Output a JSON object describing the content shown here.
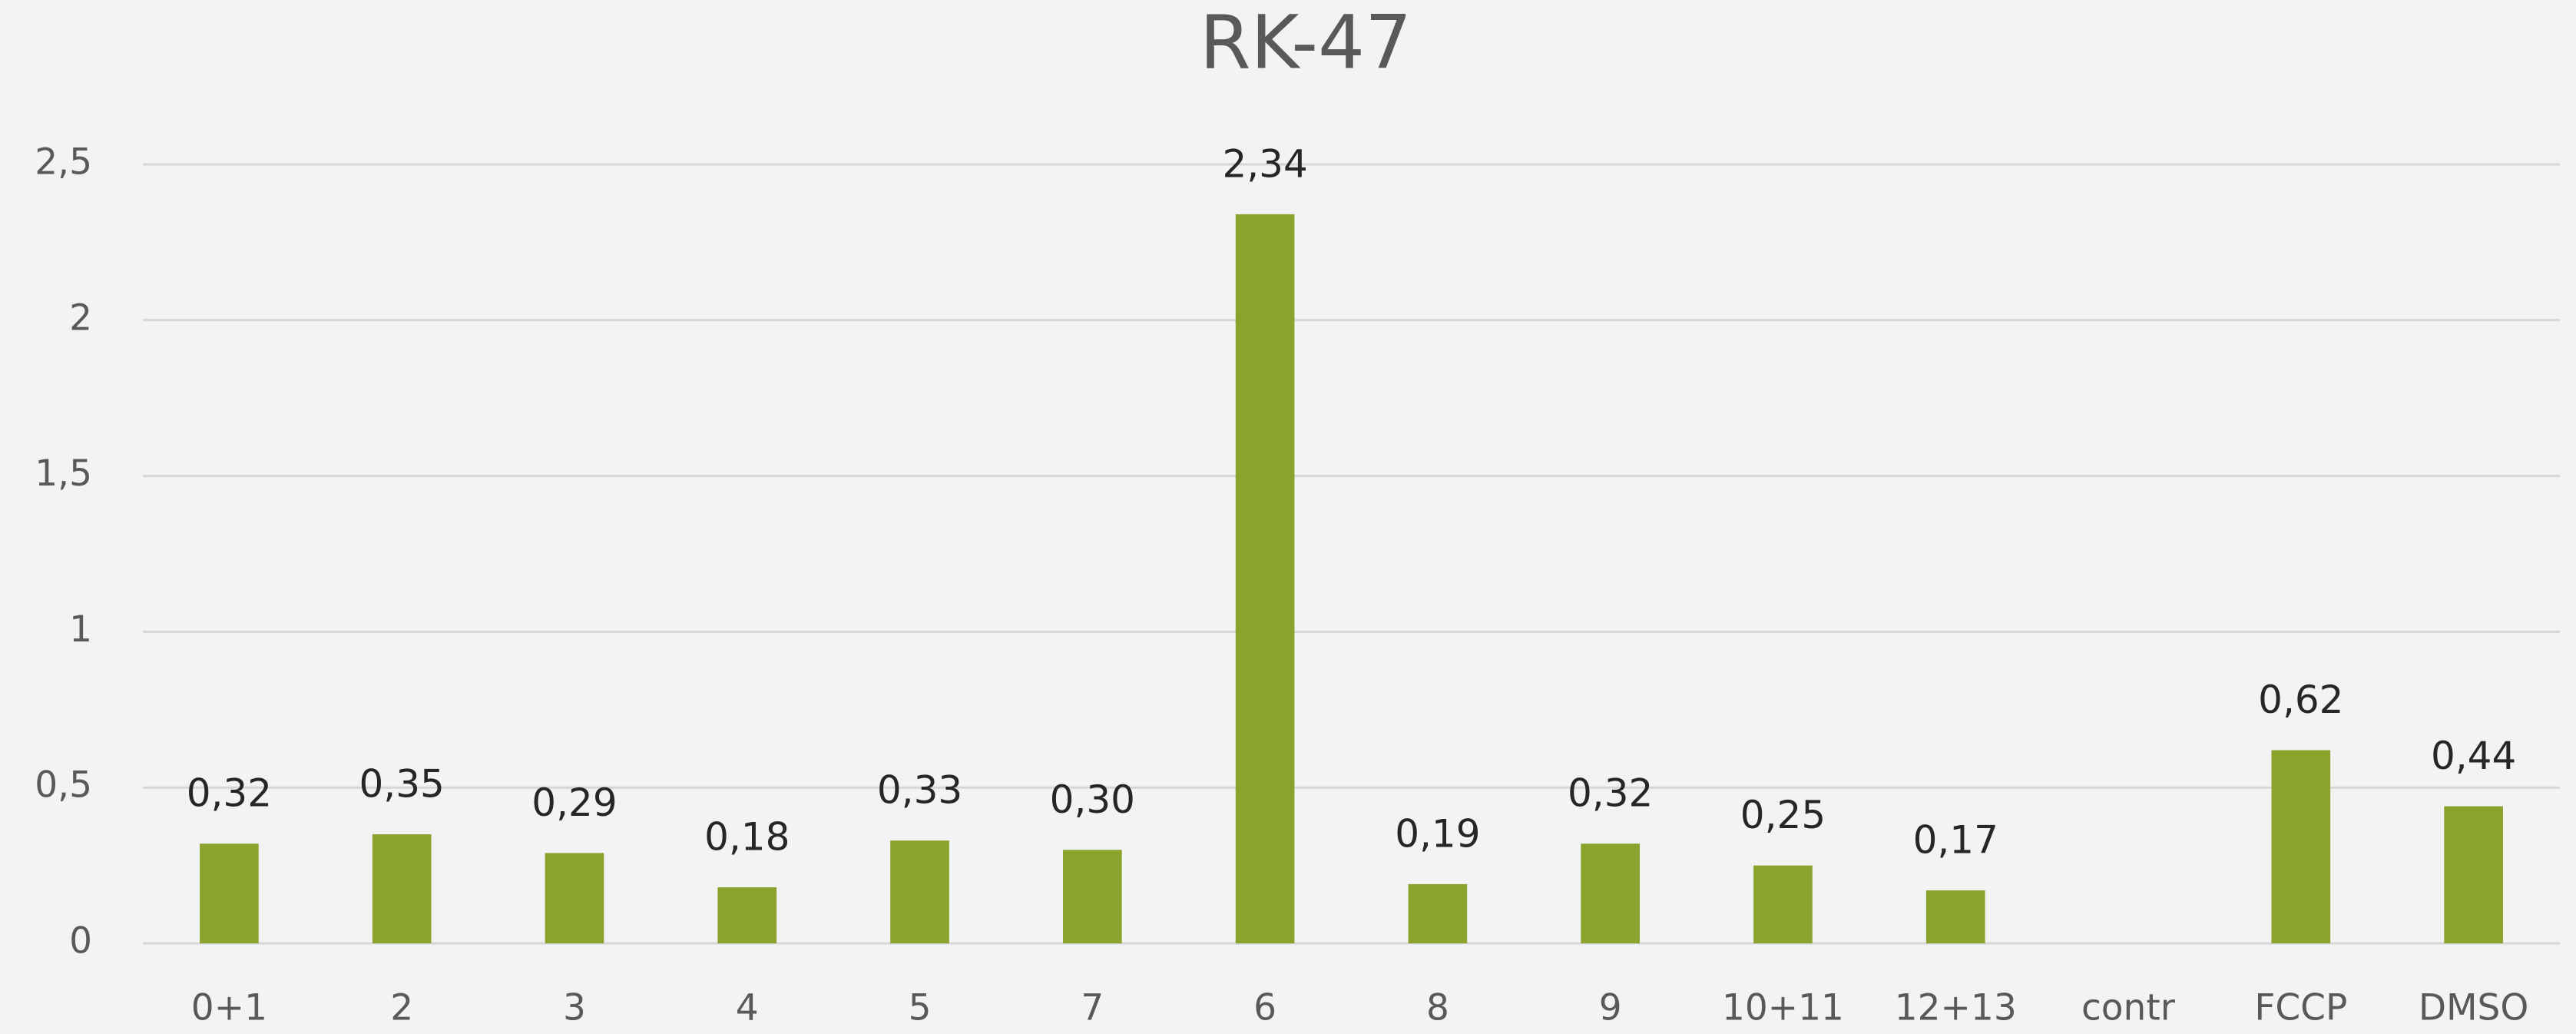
{
  "chart_data": {
    "type": "bar",
    "title": "RK-47",
    "categories": [
      "0+1",
      "2",
      "3",
      "4",
      "5",
      "7",
      "6",
      "8",
      "9",
      "10+11",
      "12+13",
      "contr",
      "FCCP",
      "DMSO"
    ],
    "values": [
      0.32,
      0.35,
      0.29,
      0.18,
      0.33,
      0.3,
      2.34,
      0.19,
      0.32,
      0.25,
      0.17,
      null,
      0.62,
      0.44
    ],
    "value_labels": [
      "0,32",
      "0,35",
      "0,29",
      "0,18",
      "0,33",
      "0,30",
      "2,34",
      "0,19",
      "0,32",
      "0,25",
      "0,17",
      null,
      "0,62",
      "0,44"
    ],
    "color": "#8aa32c",
    "ylim": [
      0,
      2.5
    ],
    "yticks": [
      0,
      {
        "value": 0.5,
        "label": "0,5"
      },
      1,
      {
        "value": 1.5,
        "label": "1,5"
      },
      2,
      {
        "value": 2.5,
        "label": "2,5"
      }
    ],
    "grid": true
  }
}
